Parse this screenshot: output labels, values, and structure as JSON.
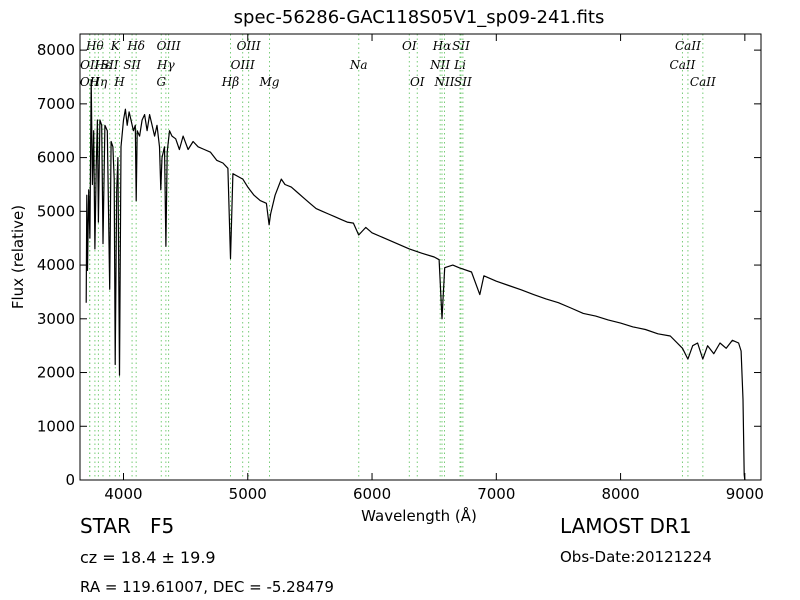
{
  "chart_data": {
    "type": "line",
    "title": "spec-56286-GAC118S05V1_sp09-241.fits",
    "xlabel": "Wavelength (Å)",
    "ylabel": "Flux (relative)",
    "xlim": [
      3650,
      9130
    ],
    "ylim": [
      0,
      8300
    ],
    "xticks": [
      4000,
      5000,
      6000,
      7000,
      8000,
      9000
    ],
    "yticks": [
      0,
      1000,
      2000,
      3000,
      4000,
      5000,
      6000,
      7000,
      8000
    ],
    "grid": false,
    "line_color": "#000000",
    "marker_color": "#77cc77",
    "series": [
      {
        "values": [
          {
            "x": 3700,
            "y": 3300
          },
          {
            "x": 3705,
            "y": 5300
          },
          {
            "x": 3710,
            "y": 3900
          },
          {
            "x": 3720,
            "y": 5400
          },
          {
            "x": 3730,
            "y": 4500
          },
          {
            "x": 3740,
            "y": 7450
          },
          {
            "x": 3750,
            "y": 5500
          },
          {
            "x": 3760,
            "y": 6500
          },
          {
            "x": 3770,
            "y": 4300
          },
          {
            "x": 3780,
            "y": 5800
          },
          {
            "x": 3790,
            "y": 6700
          },
          {
            "x": 3798,
            "y": 4800
          },
          {
            "x": 3810,
            "y": 6700
          },
          {
            "x": 3825,
            "y": 6600
          },
          {
            "x": 3835,
            "y": 4400
          },
          {
            "x": 3850,
            "y": 6600
          },
          {
            "x": 3870,
            "y": 6500
          },
          {
            "x": 3889,
            "y": 3550
          },
          {
            "x": 3900,
            "y": 6300
          },
          {
            "x": 3915,
            "y": 6200
          },
          {
            "x": 3925,
            "y": 5600
          },
          {
            "x": 3933,
            "y": 2150
          },
          {
            "x": 3945,
            "y": 5400
          },
          {
            "x": 3955,
            "y": 6000
          },
          {
            "x": 3968,
            "y": 1950
          },
          {
            "x": 3980,
            "y": 6200
          },
          {
            "x": 4000,
            "y": 6700
          },
          {
            "x": 4015,
            "y": 6900
          },
          {
            "x": 4030,
            "y": 6600
          },
          {
            "x": 4045,
            "y": 6850
          },
          {
            "x": 4060,
            "y": 6700
          },
          {
            "x": 4080,
            "y": 6500
          },
          {
            "x": 4095,
            "y": 6600
          },
          {
            "x": 4102,
            "y": 5200
          },
          {
            "x": 4110,
            "y": 6500
          },
          {
            "x": 4130,
            "y": 6400
          },
          {
            "x": 4150,
            "y": 6700
          },
          {
            "x": 4170,
            "y": 6800
          },
          {
            "x": 4190,
            "y": 6500
          },
          {
            "x": 4210,
            "y": 6800
          },
          {
            "x": 4230,
            "y": 6600
          },
          {
            "x": 4250,
            "y": 6400
          },
          {
            "x": 4270,
            "y": 6600
          },
          {
            "x": 4290,
            "y": 6200
          },
          {
            "x": 4300,
            "y": 5400
          },
          {
            "x": 4310,
            "y": 6000
          },
          {
            "x": 4330,
            "y": 6200
          },
          {
            "x": 4341,
            "y": 4350
          },
          {
            "x": 4352,
            "y": 6100
          },
          {
            "x": 4370,
            "y": 6500
          },
          {
            "x": 4390,
            "y": 6400
          },
          {
            "x": 4420,
            "y": 6350
          },
          {
            "x": 4450,
            "y": 6150
          },
          {
            "x": 4480,
            "y": 6400
          },
          {
            "x": 4520,
            "y": 6150
          },
          {
            "x": 4560,
            "y": 6300
          },
          {
            "x": 4600,
            "y": 6200
          },
          {
            "x": 4650,
            "y": 6150
          },
          {
            "x": 4700,
            "y": 6100
          },
          {
            "x": 4750,
            "y": 5950
          },
          {
            "x": 4800,
            "y": 5900
          },
          {
            "x": 4840,
            "y": 5800
          },
          {
            "x": 4861,
            "y": 4120
          },
          {
            "x": 4880,
            "y": 5700
          },
          {
            "x": 4920,
            "y": 5650
          },
          {
            "x": 4960,
            "y": 5600
          },
          {
            "x": 5000,
            "y": 5450
          },
          {
            "x": 5050,
            "y": 5300
          },
          {
            "x": 5100,
            "y": 5200
          },
          {
            "x": 5150,
            "y": 5150
          },
          {
            "x": 5172,
            "y": 4750
          },
          {
            "x": 5184,
            "y": 4950
          },
          {
            "x": 5220,
            "y": 5300
          },
          {
            "x": 5270,
            "y": 5600
          },
          {
            "x": 5300,
            "y": 5500
          },
          {
            "x": 5350,
            "y": 5450
          },
          {
            "x": 5400,
            "y": 5350
          },
          {
            "x": 5450,
            "y": 5250
          },
          {
            "x": 5500,
            "y": 5150
          },
          {
            "x": 5550,
            "y": 5050
          },
          {
            "x": 5600,
            "y": 5000
          },
          {
            "x": 5650,
            "y": 4950
          },
          {
            "x": 5700,
            "y": 4900
          },
          {
            "x": 5750,
            "y": 4850
          },
          {
            "x": 5800,
            "y": 4800
          },
          {
            "x": 5850,
            "y": 4780
          },
          {
            "x": 5893,
            "y": 4560
          },
          {
            "x": 5950,
            "y": 4700
          },
          {
            "x": 6000,
            "y": 4600
          },
          {
            "x": 6100,
            "y": 4500
          },
          {
            "x": 6200,
            "y": 4400
          },
          {
            "x": 6300,
            "y": 4300
          },
          {
            "x": 6400,
            "y": 4220
          },
          {
            "x": 6500,
            "y": 4150
          },
          {
            "x": 6540,
            "y": 4100
          },
          {
            "x": 6563,
            "y": 3000
          },
          {
            "x": 6585,
            "y": 3950
          },
          {
            "x": 6650,
            "y": 4000
          },
          {
            "x": 6700,
            "y": 3950
          },
          {
            "x": 6800,
            "y": 3870
          },
          {
            "x": 6867,
            "y": 3450
          },
          {
            "x": 6900,
            "y": 3800
          },
          {
            "x": 7000,
            "y": 3700
          },
          {
            "x": 7100,
            "y": 3620
          },
          {
            "x": 7200,
            "y": 3540
          },
          {
            "x": 7300,
            "y": 3450
          },
          {
            "x": 7400,
            "y": 3370
          },
          {
            "x": 7500,
            "y": 3300
          },
          {
            "x": 7600,
            "y": 3200
          },
          {
            "x": 7700,
            "y": 3100
          },
          {
            "x": 7800,
            "y": 3050
          },
          {
            "x": 7900,
            "y": 2980
          },
          {
            "x": 8000,
            "y": 2920
          },
          {
            "x": 8100,
            "y": 2850
          },
          {
            "x": 8200,
            "y": 2800
          },
          {
            "x": 8300,
            "y": 2720
          },
          {
            "x": 8400,
            "y": 2680
          },
          {
            "x": 8498,
            "y": 2450
          },
          {
            "x": 8542,
            "y": 2250
          },
          {
            "x": 8580,
            "y": 2500
          },
          {
            "x": 8620,
            "y": 2550
          },
          {
            "x": 8662,
            "y": 2250
          },
          {
            "x": 8700,
            "y": 2500
          },
          {
            "x": 8750,
            "y": 2350
          },
          {
            "x": 8800,
            "y": 2550
          },
          {
            "x": 8850,
            "y": 2450
          },
          {
            "x": 8900,
            "y": 2600
          },
          {
            "x": 8950,
            "y": 2550
          },
          {
            "x": 8970,
            "y": 2400
          },
          {
            "x": 8985,
            "y": 1500
          },
          {
            "x": 8995,
            "y": 100
          },
          {
            "x": 9000,
            "y": 0
          }
        ]
      }
    ],
    "line_markers": [
      {
        "x": 3727,
        "label": "OII",
        "row": 2
      },
      {
        "x": 3729,
        "label": "OII",
        "row": 1
      },
      {
        "x": 3770,
        "label": "Hθ",
        "row": 0
      },
      {
        "x": 3798,
        "label": "Hη",
        "row": 2
      },
      {
        "x": 3835,
        "label": "Hε",
        "row": 1
      },
      {
        "x": 3889,
        "label": "SII",
        "row": 1
      },
      {
        "x": 3934,
        "label": "K",
        "row": 0
      },
      {
        "x": 3968,
        "label": "H",
        "row": 2
      },
      {
        "x": 4069,
        "label": "SII",
        "row": 1
      },
      {
        "x": 4102,
        "label": "Hδ",
        "row": 0
      },
      {
        "x": 4304,
        "label": "G",
        "row": 2
      },
      {
        "x": 4341,
        "label": "Hγ",
        "row": 1
      },
      {
        "x": 4363,
        "label": "OIII",
        "row": 0
      },
      {
        "x": 4861,
        "label": "Hβ",
        "row": 2
      },
      {
        "x": 4959,
        "label": "OIII",
        "row": 1
      },
      {
        "x": 5007,
        "label": "OIII",
        "row": 0
      },
      {
        "x": 5175,
        "label": "Mg",
        "row": 2
      },
      {
        "x": 5893,
        "label": "Na",
        "row": 1
      },
      {
        "x": 6300,
        "label": "OI",
        "row": 0
      },
      {
        "x": 6364,
        "label": "OI",
        "row": 2
      },
      {
        "x": 6548,
        "label": "NII",
        "row": 1
      },
      {
        "x": 6563,
        "label": "Hα",
        "row": 0
      },
      {
        "x": 6583,
        "label": "NII",
        "row": 2
      },
      {
        "x": 6708,
        "label": "Li",
        "row": 1
      },
      {
        "x": 6716,
        "label": "SII",
        "row": 0
      },
      {
        "x": 6731,
        "label": "SII",
        "row": 2
      },
      {
        "x": 8498,
        "label": "CaII",
        "row": 1
      },
      {
        "x": 8542,
        "label": "CaII",
        "row": 0
      },
      {
        "x": 8662,
        "label": "CaII",
        "row": 2
      }
    ]
  },
  "info": {
    "object_class": "STAR",
    "subclass": "F5",
    "redshift": "cz = 18.4 ± 19.9",
    "coords": "RA = 119.61007, DEC = -5.28479",
    "survey": "LAMOST DR1",
    "obs_date": "Obs-Date:20121224"
  }
}
